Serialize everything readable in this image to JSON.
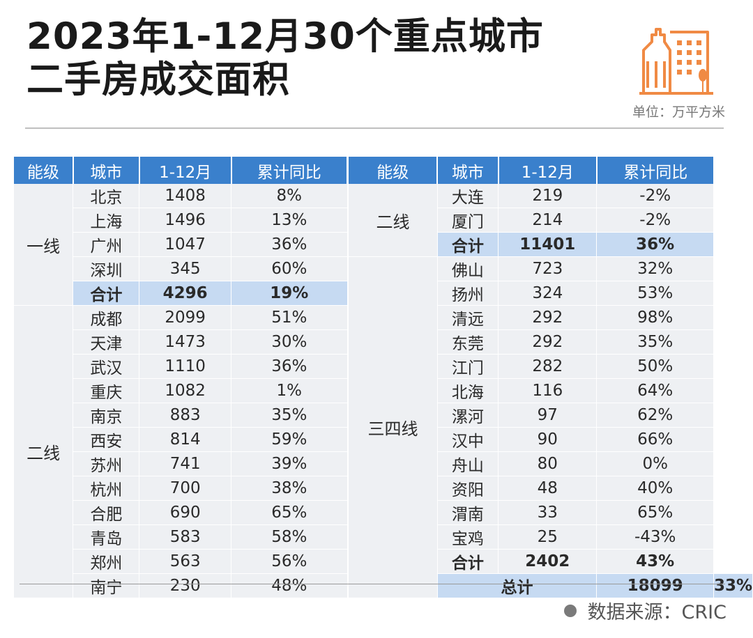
{
  "title": {
    "line1": "2023年1-12月30个重点城市",
    "line2": "二手房成交面积"
  },
  "unit": "单位：万平方米",
  "icon": "building-icon",
  "colors": {
    "header": "#3a80cc",
    "sum_row": "#c6daf2",
    "row": "#eef0f3",
    "icon": "#f08a44"
  },
  "table": {
    "headers": [
      "能级",
      "城市",
      "1-12月",
      "累计同比"
    ],
    "left": {
      "tier1_label": "一线",
      "tier1_rows": [
        {
          "city": "北京",
          "value": "1408",
          "yoy": "8%"
        },
        {
          "city": "上海",
          "value": "1496",
          "yoy": "13%"
        },
        {
          "city": "广州",
          "value": "1047",
          "yoy": "36%"
        },
        {
          "city": "深圳",
          "value": "345",
          "yoy": "60%"
        }
      ],
      "tier1_total": {
        "city": "合计",
        "value": "4296",
        "yoy": "19%"
      },
      "tier2_label": "二线",
      "tier2_rows": [
        {
          "city": "成都",
          "value": "2099",
          "yoy": "51%"
        },
        {
          "city": "天津",
          "value": "1473",
          "yoy": "30%"
        },
        {
          "city": "武汉",
          "value": "1110",
          "yoy": "36%"
        },
        {
          "city": "重庆",
          "value": "1082",
          "yoy": "1%"
        },
        {
          "city": "南京",
          "value": "883",
          "yoy": "35%"
        },
        {
          "city": "西安",
          "value": "814",
          "yoy": "59%"
        },
        {
          "city": "苏州",
          "value": "741",
          "yoy": "39%"
        },
        {
          "city": "杭州",
          "value": "700",
          "yoy": "38%"
        },
        {
          "city": "合肥",
          "value": "690",
          "yoy": "65%"
        },
        {
          "city": "青岛",
          "value": "583",
          "yoy": "58%"
        },
        {
          "city": "郑州",
          "value": "563",
          "yoy": "56%"
        },
        {
          "city": "南宁",
          "value": "230",
          "yoy": "48%"
        }
      ]
    },
    "right": {
      "tier2_label": "二线",
      "tier2_rows": [
        {
          "city": "大连",
          "value": "219",
          "yoy": "-2%"
        },
        {
          "city": "厦门",
          "value": "214",
          "yoy": "-2%"
        }
      ],
      "tier2_total": {
        "city": "合计",
        "value": "11401",
        "yoy": "36%"
      },
      "tier3_label": "三四线",
      "tier3_rows": [
        {
          "city": "佛山",
          "value": "723",
          "yoy": "32%"
        },
        {
          "city": "扬州",
          "value": "324",
          "yoy": "53%"
        },
        {
          "city": "清远",
          "value": "292",
          "yoy": "98%"
        },
        {
          "city": "东莞",
          "value": "292",
          "yoy": "35%"
        },
        {
          "city": "江门",
          "value": "282",
          "yoy": "50%"
        },
        {
          "city": "北海",
          "value": "116",
          "yoy": "64%"
        },
        {
          "city": "漯河",
          "value": "97",
          "yoy": "62%"
        },
        {
          "city": "汉中",
          "value": "90",
          "yoy": "66%"
        },
        {
          "city": "舟山",
          "value": "80",
          "yoy": "0%"
        },
        {
          "city": "资阳",
          "value": "48",
          "yoy": "40%"
        },
        {
          "city": "渭南",
          "value": "33",
          "yoy": "65%"
        },
        {
          "city": "宝鸡",
          "value": "25",
          "yoy": "-43%"
        }
      ],
      "tier3_total": {
        "city": "合计",
        "value": "2402",
        "yoy": "43%"
      },
      "grand_total": {
        "label": "总计",
        "value": "18099",
        "yoy": "33%"
      }
    }
  },
  "source": "数据来源：CRIC"
}
